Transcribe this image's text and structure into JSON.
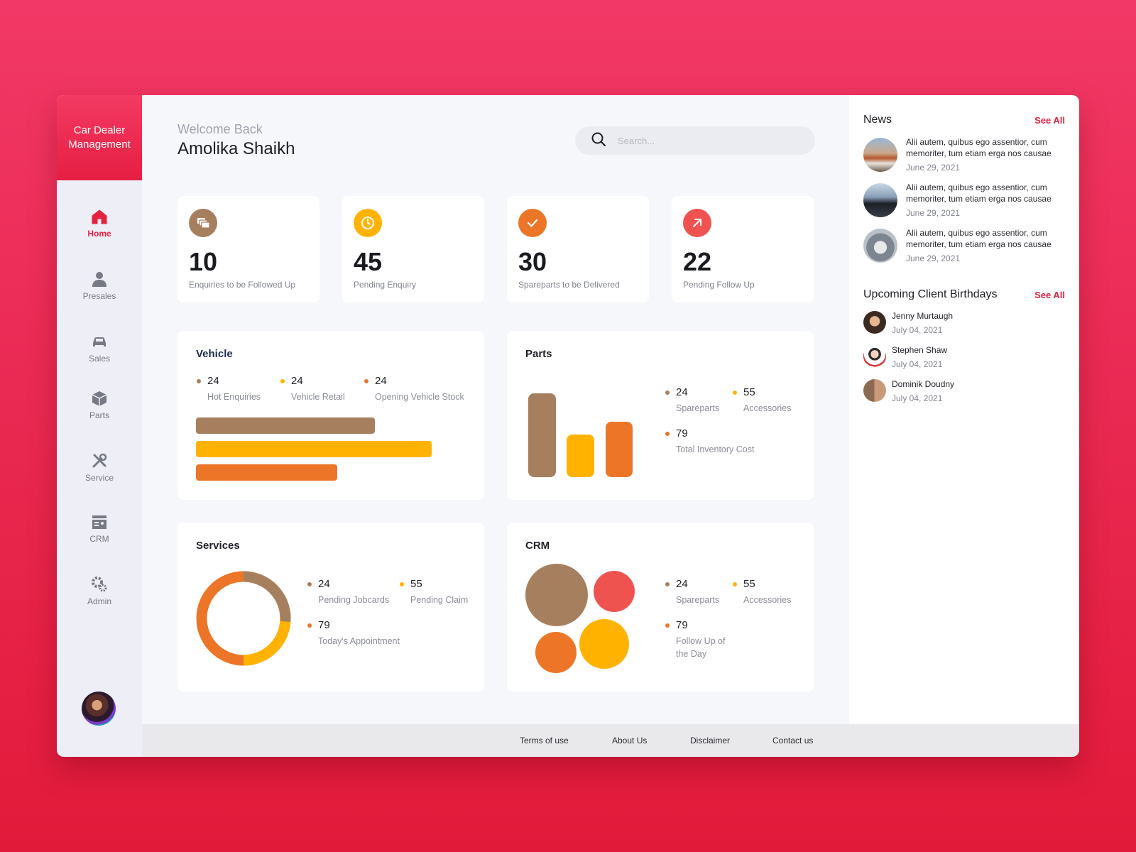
{
  "app": {
    "brand": "Car Dealer Management"
  },
  "nav": {
    "items": [
      {
        "label": "Home",
        "icon": "home-icon",
        "active": true
      },
      {
        "label": "Presales",
        "icon": "person-icon"
      },
      {
        "label": "Sales",
        "icon": "car-icon"
      },
      {
        "label": "Parts",
        "icon": "box-icon"
      },
      {
        "label": "Service",
        "icon": "tools-icon"
      },
      {
        "label": "CRM",
        "icon": "contact-card-icon"
      },
      {
        "label": "Admin",
        "icon": "gears-icon"
      }
    ]
  },
  "header": {
    "welcome": "Welcome Back",
    "username": "Amolika Shaikh",
    "search_placeholder": "Search..."
  },
  "stats": [
    {
      "value": "10",
      "label": "Enquiries to be Followed Up",
      "icon": "messages-icon",
      "color": "#a67f5f"
    },
    {
      "value": "45",
      "label": "Pending Enquiry",
      "icon": "clock-icon",
      "color": "#ffb300"
    },
    {
      "value": "30",
      "label": "Spareparts to be Delivered",
      "icon": "check-icon",
      "color": "#ec7527"
    },
    {
      "value": "22",
      "label": "Pending Follow Up",
      "icon": "arrow-up-right-icon",
      "color": "#ef5350"
    }
  ],
  "colors": {
    "brown": "#a67f5f",
    "yellow": "#ffb300",
    "orange": "#ec7527",
    "red": "#ef5350",
    "accent": "#e5213f"
  },
  "vehicle": {
    "title": "Vehicle",
    "legend": [
      {
        "value": "24",
        "label": "Hot Enquiries"
      },
      {
        "value": "24",
        "label": "Vehicle Retail"
      },
      {
        "value": "24",
        "label": "Opening Vehicle Stock"
      }
    ]
  },
  "parts": {
    "title": "Parts",
    "legend": [
      {
        "value": "24",
        "label": "Spareparts"
      },
      {
        "value": "55",
        "label": "Accessories"
      },
      {
        "value": "79",
        "label": "Total Inventory Cost"
      }
    ]
  },
  "services": {
    "title": "Services",
    "legend": [
      {
        "value": "24",
        "label": "Pending Jobcards"
      },
      {
        "value": "55",
        "label": "Pending Claim"
      },
      {
        "value": "79",
        "label": "Today's Appointment"
      }
    ]
  },
  "crm": {
    "title": "CRM",
    "legend": [
      {
        "value": "24",
        "label": "Spareparts"
      },
      {
        "value": "55",
        "label": "Accessories"
      },
      {
        "value": "79",
        "label": "Follow Up of the Day"
      }
    ]
  },
  "news": {
    "title": "News",
    "see_all": "See All",
    "items": [
      {
        "text": "Alii autem, quibus ego assentior, cum memoriter, tum etiam erga nos causae",
        "date": "June 29, 2021"
      },
      {
        "text": "Alii autem, quibus ego assentior, cum memoriter, tum etiam erga nos causae",
        "date": "June 29, 2021"
      },
      {
        "text": "Alii autem, quibus ego assentior, cum memoriter, tum etiam erga nos causae",
        "date": "June 29, 2021"
      }
    ]
  },
  "birthdays": {
    "title": "Upcoming Client Birthdays",
    "see_all": "See All",
    "items": [
      {
        "name": "Jenny Murtaugh",
        "date": "July 04, 2021"
      },
      {
        "name": "Stephen Shaw",
        "date": "July 04, 2021"
      },
      {
        "name": "Dominik Doudny",
        "date": "July 04, 2021"
      }
    ]
  },
  "footer": {
    "links": [
      "Terms of use",
      "About Us",
      "Disclaimer",
      "Contact us"
    ]
  }
}
